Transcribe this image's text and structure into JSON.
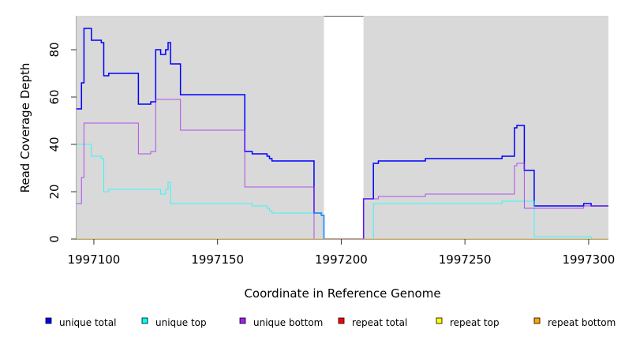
{
  "chart_data": {
    "type": "line",
    "step": true,
    "title": "",
    "xlabel": "Coordinate in Reference Genome",
    "ylabel": "Read Coverage Depth",
    "xlim": [
      1997093,
      1997308
    ],
    "ylim": [
      0,
      94
    ],
    "xticks": [
      1997100,
      1997150,
      1997200,
      1997250,
      1997300
    ],
    "yticks": [
      0,
      20,
      40,
      60,
      80
    ],
    "background_color": "#d9d9d9",
    "gap_region": [
      1997193,
      1997209
    ],
    "legend_position": "bottom",
    "series": [
      {
        "name": "unique total",
        "color": "#0000ff",
        "steps": [
          [
            1997093,
            55
          ],
          [
            1997095,
            66
          ],
          [
            1997096,
            89
          ],
          [
            1997099,
            84
          ],
          [
            1997103,
            83
          ],
          [
            1997104,
            69
          ],
          [
            1997106,
            70
          ],
          [
            1997118,
            57
          ],
          [
            1997123,
            58
          ],
          [
            1997125,
            80
          ],
          [
            1997127,
            78
          ],
          [
            1997129,
            80
          ],
          [
            1997130,
            83
          ],
          [
            1997131,
            74
          ],
          [
            1997135,
            61
          ],
          [
            1997161,
            37
          ],
          [
            1997164,
            36
          ],
          [
            1997170,
            35
          ],
          [
            1997171,
            34
          ],
          [
            1997172,
            33
          ],
          [
            1997189,
            11
          ],
          [
            1997192,
            10
          ],
          [
            1997193,
            0
          ],
          [
            1997209,
            17
          ],
          [
            1997213,
            32
          ],
          [
            1997215,
            33
          ],
          [
            1997234,
            34
          ],
          [
            1997265,
            35
          ],
          [
            1997270,
            47
          ],
          [
            1997271,
            48
          ],
          [
            1997274,
            29
          ],
          [
            1997278,
            14
          ],
          [
            1997298,
            15
          ],
          [
            1997301,
            14
          ]
        ]
      },
      {
        "name": "unique top",
        "color": "#00ffff",
        "steps": [
          [
            1997093,
            40
          ],
          [
            1997099,
            35
          ],
          [
            1997103,
            34
          ],
          [
            1997104,
            20
          ],
          [
            1997106,
            21
          ],
          [
            1997127,
            19
          ],
          [
            1997129,
            21
          ],
          [
            1997130,
            24
          ],
          [
            1997131,
            15
          ],
          [
            1997164,
            14
          ],
          [
            1997170,
            13
          ],
          [
            1997171,
            12
          ],
          [
            1997172,
            11
          ],
          [
            1997192,
            10
          ],
          [
            1997193,
            0
          ],
          [
            1997213,
            15
          ],
          [
            1997265,
            16
          ],
          [
            1997278,
            1
          ],
          [
            1997301,
            0
          ]
        ]
      },
      {
        "name": "unique bottom",
        "color": "#a020f0",
        "steps": [
          [
            1997093,
            15
          ],
          [
            1997095,
            26
          ],
          [
            1997096,
            49
          ],
          [
            1997118,
            36
          ],
          [
            1997123,
            37
          ],
          [
            1997125,
            59
          ],
          [
            1997135,
            46
          ],
          [
            1997161,
            22
          ],
          [
            1997189,
            0
          ],
          [
            1997209,
            17
          ],
          [
            1997215,
            18
          ],
          [
            1997234,
            19
          ],
          [
            1997270,
            31
          ],
          [
            1997271,
            32
          ],
          [
            1997274,
            13
          ],
          [
            1997298,
            14
          ]
        ]
      },
      {
        "name": "repeat total",
        "color": "#ff0000",
        "steps": [
          [
            1997093,
            0
          ]
        ]
      },
      {
        "name": "repeat top",
        "color": "#ffff00",
        "steps": [
          [
            1997093,
            0
          ]
        ]
      },
      {
        "name": "repeat bottom",
        "color": "#ffa500",
        "steps": [
          [
            1997093,
            0
          ]
        ]
      }
    ]
  }
}
